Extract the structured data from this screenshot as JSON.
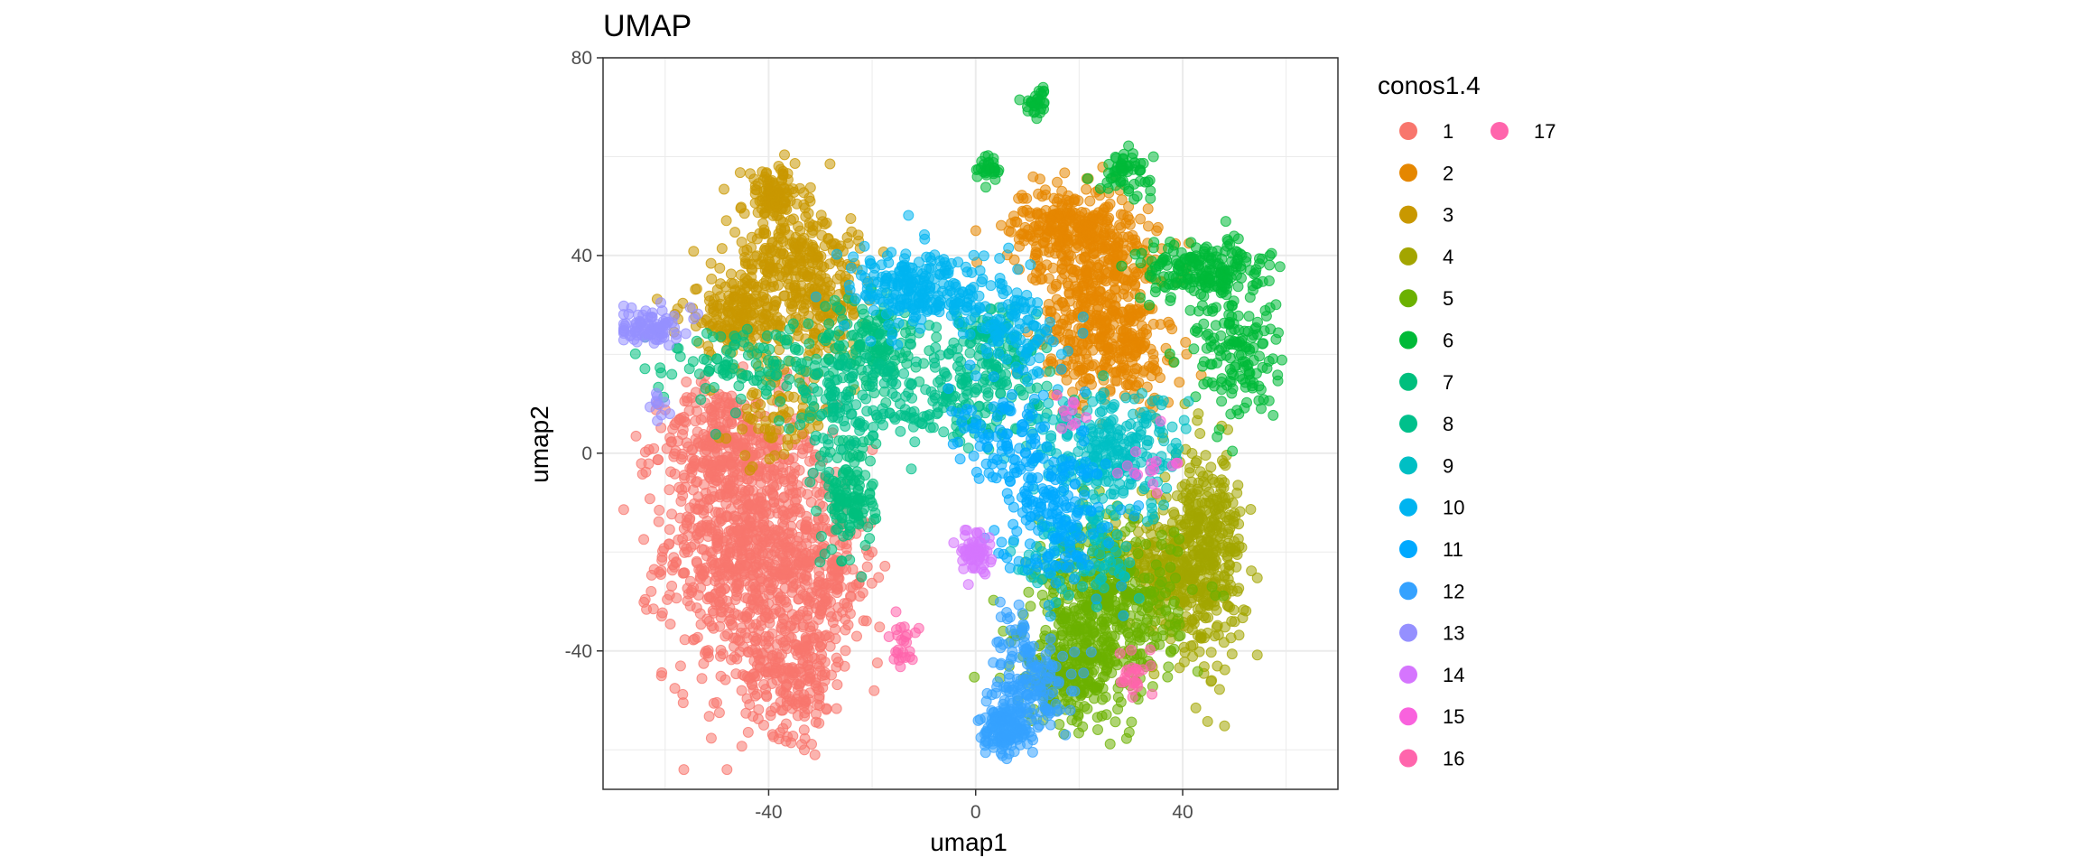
{
  "chart_data": {
    "type": "scatter",
    "title": "UMAP",
    "xlabel": "umap1",
    "ylabel": "umap2",
    "xlim": [
      -72,
      70
    ],
    "ylim": [
      -68,
      80
    ],
    "x_ticks": [
      -40,
      0,
      40
    ],
    "y_ticks": [
      -40,
      0,
      40,
      80
    ],
    "x_tick_labels": [
      "-40",
      "0",
      "40"
    ],
    "y_tick_labels": [
      "-40",
      "0",
      "40",
      "80"
    ],
    "grid": true,
    "legend": {
      "title": "conos1.4",
      "placement": "right",
      "entries": [
        "1",
        "2",
        "3",
        "4",
        "5",
        "6",
        "7",
        "8",
        "9",
        "10",
        "11",
        "12",
        "13",
        "14",
        "15",
        "16",
        "17"
      ]
    },
    "point_opacity": 0.55,
    "series": [
      {
        "name": "1",
        "color": "#F8766D",
        "clusters": [
          {
            "cx": -44,
            "cy": -18,
            "sx": 8,
            "sy": 14,
            "n": 900
          },
          {
            "cx": -50,
            "cy": 2,
            "sx": 5,
            "sy": 6,
            "n": 200
          },
          {
            "cx": -35,
            "cy": -45,
            "sx": 5,
            "sy": 6,
            "n": 200
          },
          {
            "cx": -30,
            "cy": -25,
            "sx": 5,
            "sy": 8,
            "n": 200
          }
        ]
      },
      {
        "name": "2",
        "color": "#E58700",
        "clusters": [
          {
            "cx": 18,
            "cy": 46,
            "sx": 6,
            "sy": 4,
            "n": 250
          },
          {
            "cx": 24,
            "cy": 32,
            "sx": 6,
            "sy": 9,
            "n": 400
          },
          {
            "cx": 28,
            "cy": 20,
            "sx": 6,
            "sy": 5,
            "n": 150
          }
        ]
      },
      {
        "name": "3",
        "color": "#C99800",
        "clusters": [
          {
            "cx": -39,
            "cy": 52,
            "sx": 3,
            "sy": 3,
            "n": 120
          },
          {
            "cx": -36,
            "cy": 40,
            "sx": 6,
            "sy": 4,
            "n": 180
          },
          {
            "cx": -45,
            "cy": 28,
            "sx": 6,
            "sy": 4,
            "n": 200
          },
          {
            "cx": -30,
            "cy": 30,
            "sx": 4,
            "sy": 5,
            "n": 150
          },
          {
            "cx": -38,
            "cy": 8,
            "sx": 5,
            "sy": 5,
            "n": 80
          }
        ]
      },
      {
        "name": "4",
        "color": "#A3A500",
        "clusters": [
          {
            "cx": 44,
            "cy": -20,
            "sx": 4,
            "sy": 10,
            "n": 400
          },
          {
            "cx": 36,
            "cy": -24,
            "sx": 5,
            "sy": 6,
            "n": 200
          }
        ]
      },
      {
        "name": "5",
        "color": "#6BB100",
        "clusters": [
          {
            "cx": 25,
            "cy": -32,
            "sx": 7,
            "sy": 9,
            "n": 500
          },
          {
            "cx": 18,
            "cy": -44,
            "sx": 5,
            "sy": 5,
            "n": 200
          }
        ]
      },
      {
        "name": "6",
        "color": "#00BA38",
        "clusters": [
          {
            "cx": 12,
            "cy": 71,
            "sx": 1.2,
            "sy": 1.5,
            "n": 30
          },
          {
            "cx": 3,
            "cy": 58,
            "sx": 1.2,
            "sy": 1.5,
            "n": 30
          },
          {
            "cx": 29,
            "cy": 57,
            "sx": 2.5,
            "sy": 2,
            "n": 60
          },
          {
            "cx": 44,
            "cy": 37,
            "sx": 6,
            "sy": 3,
            "n": 200
          },
          {
            "cx": 50,
            "cy": 20,
            "sx": 4,
            "sy": 7,
            "n": 150
          }
        ]
      },
      {
        "name": "7",
        "color": "#00BF7D",
        "clusters": [
          {
            "cx": -24,
            "cy": -8,
            "sx": 2.5,
            "sy": 7,
            "n": 150
          },
          {
            "cx": -20,
            "cy": 22,
            "sx": 5,
            "sy": 5,
            "n": 150
          },
          {
            "cx": -44,
            "cy": 18,
            "sx": 9,
            "sy": 4,
            "n": 120
          }
        ]
      },
      {
        "name": "8",
        "color": "#00C08B",
        "clusters": [
          {
            "cx": -5,
            "cy": 12,
            "sx": 10,
            "sy": 5,
            "n": 200
          },
          {
            "cx": 3,
            "cy": 22,
            "sx": 5,
            "sy": 5,
            "n": 100
          },
          {
            "cx": -26,
            "cy": 10,
            "sx": 5,
            "sy": 5,
            "n": 80
          }
        ]
      },
      {
        "name": "9",
        "color": "#00BFC4",
        "clusters": [
          {
            "cx": 26,
            "cy": 0,
            "sx": 7,
            "sy": 6,
            "n": 250
          },
          {
            "cx": 20,
            "cy": -20,
            "sx": 6,
            "sy": 5,
            "n": 100
          }
        ]
      },
      {
        "name": "10",
        "color": "#00B4F0",
        "clusters": [
          {
            "cx": -10,
            "cy": 33,
            "sx": 7,
            "sy": 4,
            "n": 250
          },
          {
            "cx": 8,
            "cy": 25,
            "sx": 4,
            "sy": 5,
            "n": 100
          }
        ]
      },
      {
        "name": "11",
        "color": "#00A9FF",
        "clusters": [
          {
            "cx": 15,
            "cy": -10,
            "sx": 5,
            "sy": 8,
            "n": 200
          },
          {
            "cx": 5,
            "cy": 2,
            "sx": 5,
            "sy": 5,
            "n": 80
          }
        ]
      },
      {
        "name": "12",
        "color": "#35A2FF",
        "clusters": [
          {
            "cx": 6,
            "cy": -56,
            "sx": 2.5,
            "sy": 2.5,
            "n": 150
          },
          {
            "cx": 11,
            "cy": -48,
            "sx": 4,
            "sy": 4,
            "n": 120
          },
          {
            "cx": 8,
            "cy": -38,
            "sx": 2,
            "sy": 4,
            "n": 40
          }
        ]
      },
      {
        "name": "13",
        "color": "#9590FF",
        "clusters": [
          {
            "cx": -63,
            "cy": 26,
            "sx": 3,
            "sy": 2,
            "n": 90
          },
          {
            "cx": -61,
            "cy": 10,
            "sx": 1,
            "sy": 2,
            "n": 10
          }
        ]
      },
      {
        "name": "14",
        "color": "#D575FE",
        "clusters": [
          {
            "cx": 0,
            "cy": -20,
            "sx": 1.5,
            "sy": 2,
            "n": 60
          }
        ]
      },
      {
        "name": "15",
        "color": "#F962DD",
        "clusters": [
          {
            "cx": 33,
            "cy": -3,
            "sx": 3,
            "sy": 3,
            "n": 15
          },
          {
            "cx": 18,
            "cy": 8,
            "sx": 2,
            "sy": 2,
            "n": 10
          }
        ]
      },
      {
        "name": "16",
        "color": "#FF65AC",
        "clusters": [
          {
            "cx": -14,
            "cy": -38,
            "sx": 1.2,
            "sy": 3,
            "n": 25
          },
          {
            "cx": 31,
            "cy": -45,
            "sx": 2,
            "sy": 2,
            "n": 25
          }
        ]
      },
      {
        "name": "17",
        "color": "#FF65AC",
        "clusters": []
      }
    ]
  }
}
